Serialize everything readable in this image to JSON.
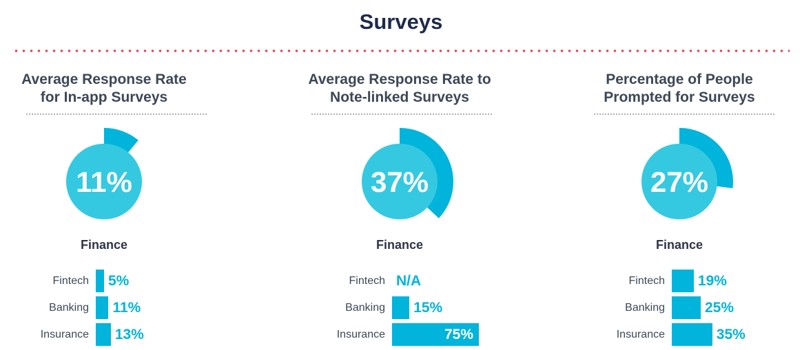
{
  "page_title": "Surveys",
  "colors": {
    "accent": "#00b4db",
    "donut_fill": "#35c9e1",
    "divider": "#e2485d",
    "text": "#3e4756",
    "title": "#1f2a4a"
  },
  "chart_data": [
    {
      "type": "donut",
      "title": [
        "Average Response Rate",
        "for In-app Surveys"
      ],
      "value": 11,
      "value_label": "11%",
      "subtitle": "Finance",
      "bars": {
        "type": "bar",
        "orientation": "horizontal",
        "categories": [
          "Fintech",
          "Banking",
          "Insurance"
        ],
        "values": [
          5,
          11,
          13
        ],
        "labels": [
          "5%",
          "11%",
          "13%"
        ]
      }
    },
    {
      "type": "donut",
      "title": [
        "Average Response Rate to",
        "Note-linked Surveys"
      ],
      "value": 37,
      "value_label": "37%",
      "subtitle": "Finance",
      "bars": {
        "type": "bar",
        "orientation": "horizontal",
        "categories": [
          "Fintech",
          "Banking",
          "Insurance"
        ],
        "values": [
          null,
          15,
          75
        ],
        "labels": [
          "N/A",
          "15%",
          "75%"
        ]
      }
    },
    {
      "type": "donut",
      "title": [
        "Percentage of People",
        "Prompted for Surveys"
      ],
      "value": 27,
      "value_label": "27%",
      "subtitle": "Finance",
      "bars": {
        "type": "bar",
        "orientation": "horizontal",
        "categories": [
          "Fintech",
          "Banking",
          "Insurance"
        ],
        "values": [
          19,
          25,
          35
        ],
        "labels": [
          "19%",
          "25%",
          "35%"
        ]
      }
    }
  ]
}
